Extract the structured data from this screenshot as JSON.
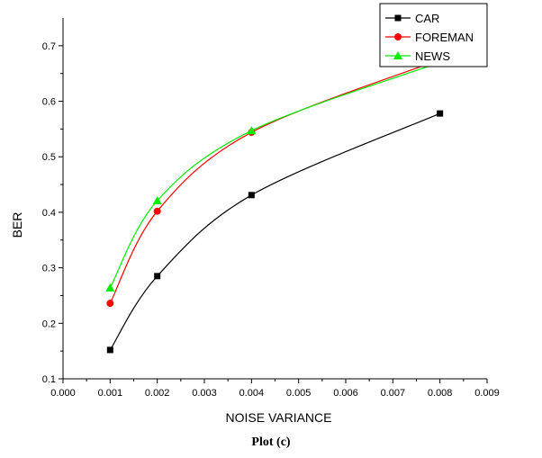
{
  "chart_data": {
    "type": "line",
    "xlabel": "NOISE VARIANCE",
    "ylabel": "BER",
    "xlim": [
      0.0,
      0.009
    ],
    "ylim": [
      0.1,
      0.75
    ],
    "xticks": [
      "0.000",
      "0.001",
      "0.002",
      "0.003",
      "0.004",
      "0.005",
      "0.006",
      "0.007",
      "0.008",
      "0.009"
    ],
    "yticks": [
      "0.1",
      "0.2",
      "0.3",
      "0.4",
      "0.5",
      "0.6",
      "0.7"
    ],
    "legend_position": "top-right",
    "grid": false,
    "series": [
      {
        "name": "CAR",
        "color": "#000000",
        "marker": "square",
        "x": [
          0.001,
          0.002,
          0.004,
          0.008
        ],
        "y": [
          0.152,
          0.285,
          0.431,
          0.578
        ]
      },
      {
        "name": "FOREMAN",
        "color": "#ff0000",
        "marker": "circle",
        "x": [
          0.001,
          0.002,
          0.004,
          0.008
        ],
        "y": [
          0.236,
          0.402,
          0.544,
          0.675
        ]
      },
      {
        "name": "NEWS",
        "color": "#00ee00",
        "marker": "triangle",
        "x": [
          0.001,
          0.002,
          0.004,
          0.008
        ],
        "y": [
          0.264,
          0.421,
          0.547,
          0.67
        ]
      }
    ]
  },
  "caption": "Plot (c)"
}
